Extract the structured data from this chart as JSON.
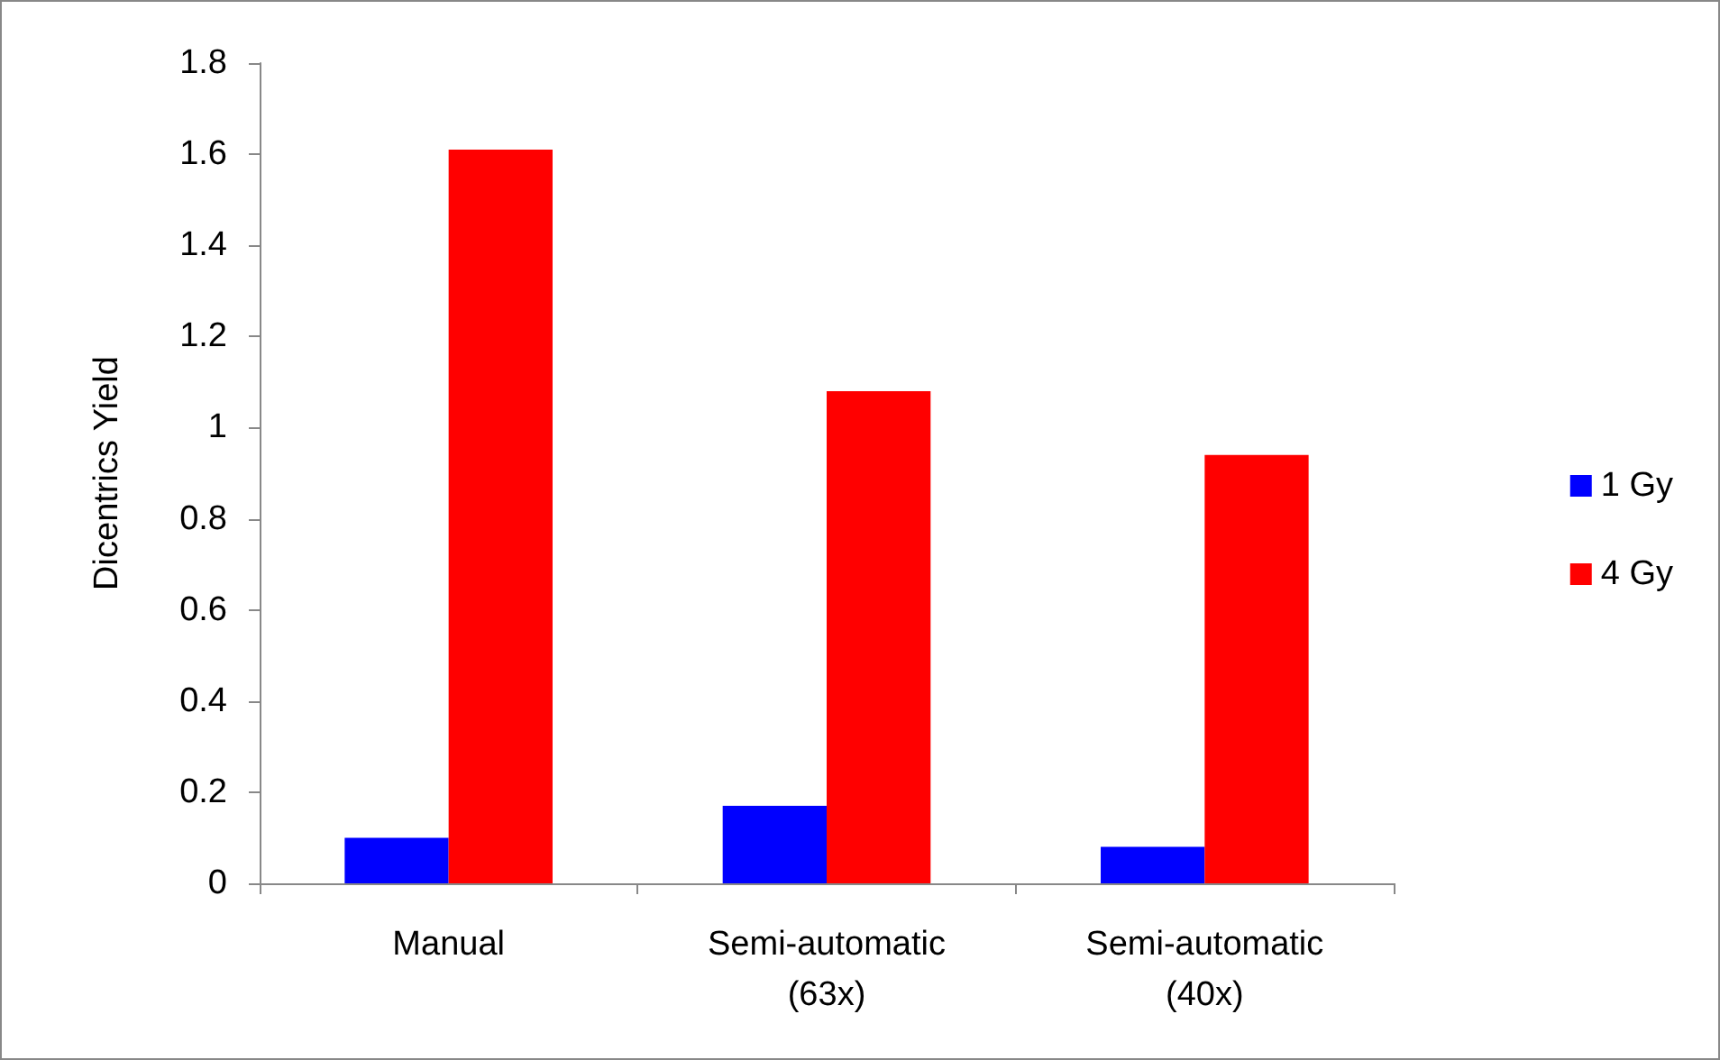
{
  "chart_data": {
    "type": "bar",
    "ylabel": "Dicentrics Yield",
    "categories": [
      "Manual",
      "Semi-automatic\n(63x)",
      "Semi-automatic\n(40x)"
    ],
    "series": [
      {
        "name": "1 Gy",
        "color": "#0000ff",
        "values": [
          0.1,
          0.17,
          0.08
        ]
      },
      {
        "name": "4 Gy",
        "color": "#ff0000",
        "values": [
          1.61,
          1.08,
          0.94
        ]
      }
    ],
    "ylim": [
      0,
      1.8
    ],
    "yticks": [
      0,
      0.2,
      0.4,
      0.6,
      0.8,
      1,
      1.2,
      1.4,
      1.6,
      1.8
    ],
    "grid": false,
    "legend": "right"
  }
}
